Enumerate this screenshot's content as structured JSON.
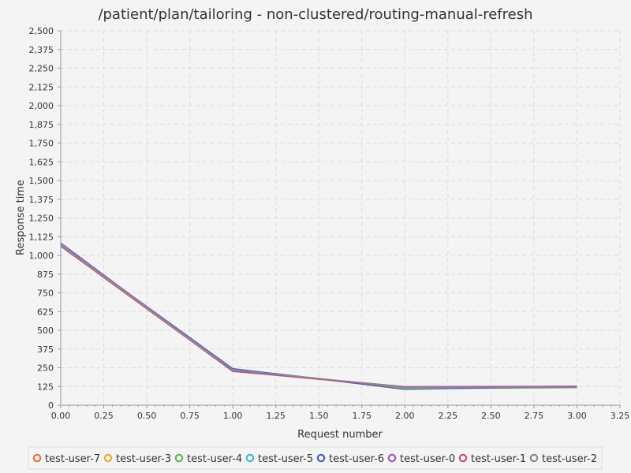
{
  "chart_data": {
    "type": "line",
    "title": "/patient/plan/tailoring - non-clustered/routing-manual-refresh",
    "xlabel": "Request number",
    "ylabel": "Response time",
    "xlim": [
      0,
      3.25
    ],
    "ylim": [
      0,
      2500
    ],
    "x_ticks": [
      "0.00",
      "0.25",
      "0.50",
      "0.75",
      "1.00",
      "1.25",
      "1.50",
      "1.75",
      "2.00",
      "2.25",
      "2.50",
      "2.75",
      "3.00",
      "3.25"
    ],
    "y_ticks": [
      "0",
      "125",
      "250",
      "375",
      "500",
      "625",
      "750",
      "875",
      "1,000",
      "1,125",
      "1,250",
      "1,375",
      "1,500",
      "1,625",
      "1,750",
      "1,875",
      "2,000",
      "2,125",
      "2,250",
      "2,375",
      "2,500"
    ],
    "grid": true,
    "legend_position": "bottom",
    "x": [
      0,
      1,
      2,
      3
    ],
    "series": [
      {
        "name": "test-user-7",
        "color": "#e8703a",
        "values": [
          1065,
          240,
          115,
          120
        ]
      },
      {
        "name": "test-user-3",
        "color": "#f0a830",
        "values": [
          1070,
          238,
          112,
          118
        ]
      },
      {
        "name": "test-user-4",
        "color": "#5cb85c",
        "values": [
          1062,
          236,
          110,
          116
        ]
      },
      {
        "name": "test-user-5",
        "color": "#4fb3c8",
        "values": [
          1068,
          242,
          118,
          122
        ]
      },
      {
        "name": "test-user-6",
        "color": "#4a5fc0",
        "values": [
          1075,
          245,
          105,
          125
        ]
      },
      {
        "name": "test-user-0",
        "color": "#9b59c6",
        "values": [
          1085,
          230,
          125,
          128
        ]
      },
      {
        "name": "test-user-1",
        "color": "#c8506e",
        "values": [
          1060,
          225,
          120,
          118
        ]
      },
      {
        "name": "test-user-2",
        "color": "#8c8c8c",
        "values": [
          1072,
          235,
          122,
          120
        ]
      }
    ]
  }
}
